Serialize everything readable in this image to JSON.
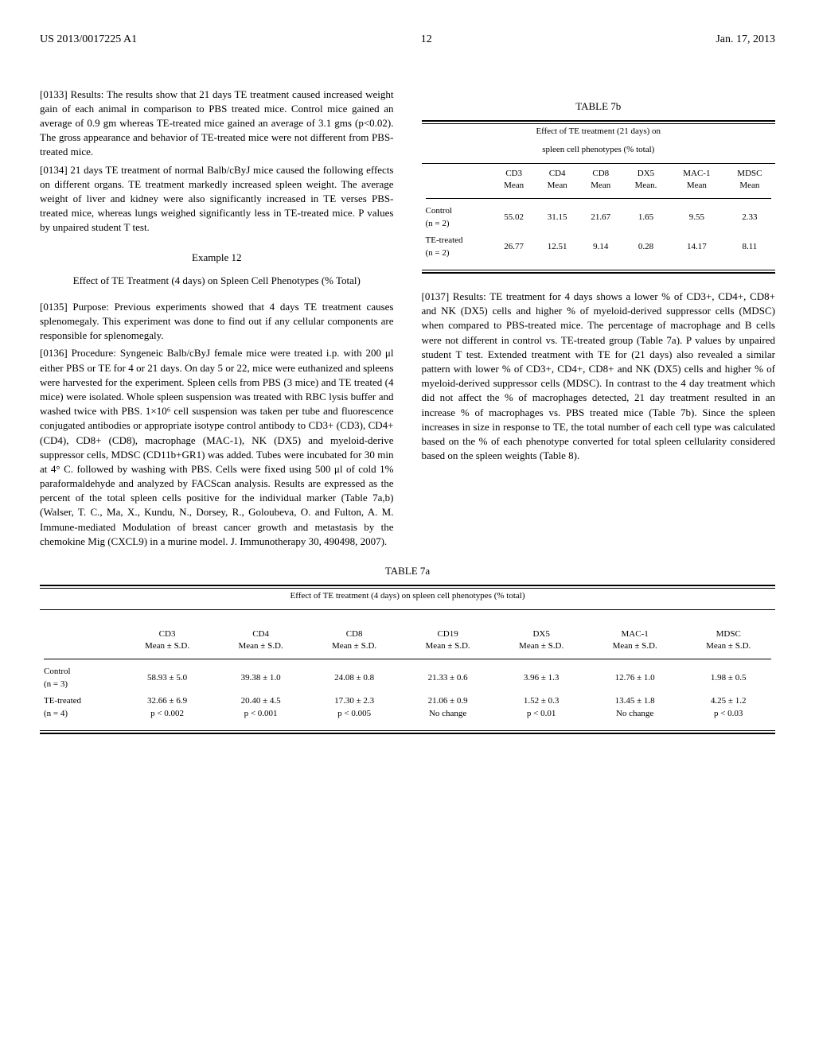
{
  "header": {
    "pub_num": "US 2013/0017225 A1",
    "page": "12",
    "date": "Jan. 17, 2013"
  },
  "left_col": {
    "p0133": "[0133]   Results: The results show that 21 days TE treatment caused increased weight gain of each animal in comparison to PBS treated mice. Control mice gained an average of 0.9 gm whereas TE-treated mice gained an average of 3.1 gms (p<0.02). The gross appearance and behavior of TE-treated mice were not different from PBS-treated mice.",
    "p0134": "[0134]   21 days TE treatment of normal Balb/cByJ mice caused the following effects on different organs. TE treatment markedly increased spleen weight. The average weight of liver and kidney were also significantly increased in TE verses PBS-treated mice, whereas lungs weighed significantly less in TE-treated mice. P values by unpaired student T test.",
    "ex_heading": "Example 12",
    "ex_title": "Effect of TE Treatment (4 days) on Spleen Cell Phenotypes (% Total)",
    "p0135": "[0135]   Purpose: Previous experiments showed that 4 days TE treatment causes splenomegaly. This experiment was done to find out if any cellular components are responsible for splenomegaly.",
    "p0136": "[0136]   Procedure: Syngeneic Balb/cByJ female mice were treated i.p. with 200 μl either PBS or TE for 4 or 21 days. On day 5 or 22, mice were euthanized and spleens were harvested for the experiment. Spleen cells from PBS (3 mice) and TE treated (4 mice) were isolated. Whole spleen suspension was treated with RBC lysis buffer and washed twice with PBS. 1×10⁶ cell suspension was taken per tube and fluorescence conjugated antibodies or appropriate isotype control antibody to CD3+ (CD3), CD4+ (CD4), CD8+ (CD8), macrophage (MAC-1), NK (DX5) and myeloid-derive suppressor cells, MDSC (CD11b+GR1) was added. Tubes were incubated for 30 min at 4° C. followed by washing with PBS. Cells were fixed using 500 μl of cold 1% paraformaldehyde and analyzed by FACScan analysis. Results are expressed as the percent of the total spleen cells positive for the individual marker (Table 7a,b) (Walser, T. C., Ma, X., Kundu, N., Dorsey, R., Goloubeva, O. and Fulton, A. M. Immune-mediated Modulation of breast cancer growth and metastasis by the chemokine Mig (CXCL9) in a murine model. J. Immunotherapy 30, 490498, 2007)."
  },
  "right_col": {
    "p0137": "[0137]   Results: TE treatment for 4 days shows a lower % of CD3+, CD4+, CD8+ and NK (DX5) cells and higher % of myeloid-derived suppressor cells (MDSC) when compared to PBS-treated mice. The percentage of macrophage and B cells were not different in control vs. TE-treated group (Table 7a). P values by unpaired student T test. Extended treatment with TE for (21 days) also revealed a similar pattern with lower % of CD3+, CD4+, CD8+ and NK (DX5) cells and higher % of myeloid-derived suppressor cells (MDSC). In contrast to the 4 day treatment which did not affect the % of macrophages detected, 21 day treatment resulted in an increase % of macrophages vs. PBS treated mice (Table 7b). Since the spleen increases in size in response to TE, the total number of each cell type was calculated based on the % of each phenotype converted for total spleen cellularity considered based on the spleen weights (Table 8)."
  },
  "table7b": {
    "label": "TABLE 7b",
    "caption_l1": "Effect of TE treatment (21 days) on",
    "caption_l2": "spleen cell phenotypes (% total)",
    "headers": [
      "",
      "CD3\nMean",
      "CD4\nMean",
      "CD8\nMean",
      "DX5\nMean.",
      "MAC-1\nMean",
      "MDSC\nMean"
    ],
    "row1": {
      "label": "Control",
      "sublabel": "(n = 2)",
      "vals": [
        "55.02",
        "31.15",
        "21.67",
        "1.65",
        "9.55",
        "2.33"
      ]
    },
    "row2": {
      "label": "TE-treated",
      "sublabel": "(n = 2)",
      "vals": [
        "26.77",
        "12.51",
        "9.14",
        "0.28",
        "14.17",
        "8.11"
      ]
    }
  },
  "table7a": {
    "label": "TABLE 7a",
    "caption": "Effect of TE treatment (4 days) on spleen cell phenotypes (% total)",
    "headers": [
      "",
      "CD3\nMean ± S.D.",
      "CD4\nMean ± S.D.",
      "CD8\nMean ± S.D.",
      "CD19\nMean ± S.D.",
      "DX5\nMean ± S.D.",
      "MAC-1\nMean ± S.D.",
      "MDSC\nMean ± S.D."
    ],
    "row1": {
      "label": "Control",
      "sublabel": "(n = 3)",
      "vals": [
        "58.93 ± 5.0",
        "39.38 ± 1.0",
        "24.08 ± 0.8",
        "21.33 ± 0.6",
        "3.96 ± 1.3",
        "12.76 ± 1.0",
        "1.98 ± 0.5"
      ]
    },
    "row2": {
      "label": "TE-treated",
      "sublabel": "(n = 4)",
      "vals": [
        "32.66 ± 6.9",
        "20.40 ± 4.5",
        "17.30 ± 2.3",
        "21.06 ± 0.9",
        "1.52 ± 0.3",
        "13.45 ± 1.8",
        "4.25 ± 1.2"
      ],
      "pvals": [
        "p < 0.002",
        "p < 0.001",
        "p < 0.005",
        "No change",
        "p < 0.01",
        "No change",
        "p < 0.03"
      ]
    }
  }
}
